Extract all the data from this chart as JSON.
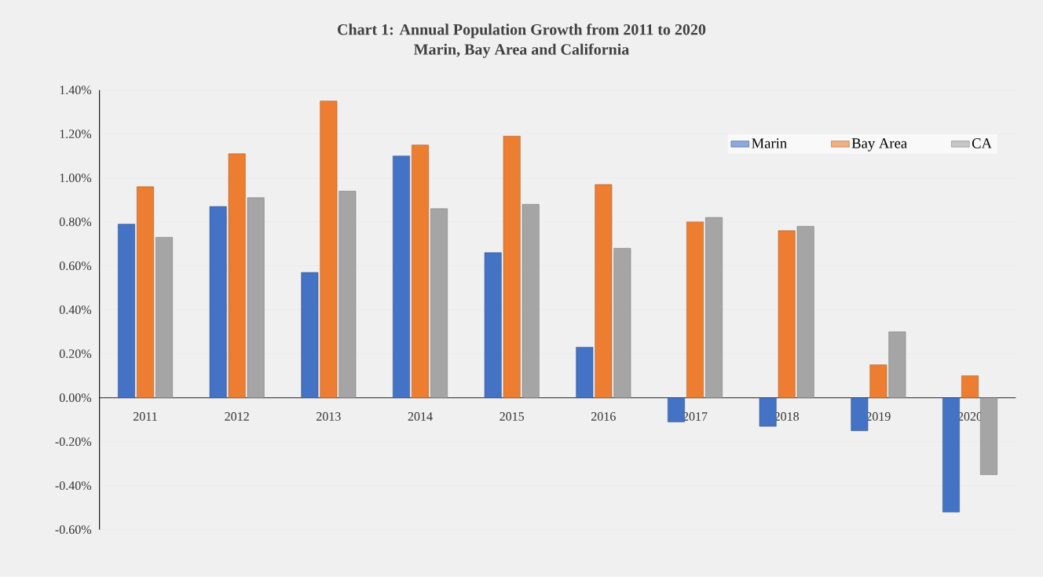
{
  "chart_data": {
    "type": "bar",
    "title": "Chart 1: Annual Population Growth from 2011 to 2020",
    "subtitle": "Marin, Bay Area and California",
    "categories": [
      "2011",
      "2012",
      "2013",
      "2014",
      "2015",
      "2016",
      "2017",
      "2018",
      "2019",
      "2020"
    ],
    "series": [
      {
        "name": "Marin",
        "color": "#4472c4",
        "values": [
          0.79,
          0.87,
          0.57,
          1.1,
          0.66,
          0.23,
          -0.11,
          -0.13,
          -0.15,
          -0.52
        ]
      },
      {
        "name": "Bay Area",
        "color": "#ed7d31",
        "values": [
          0.96,
          1.11,
          1.35,
          1.15,
          1.19,
          0.97,
          0.8,
          0.76,
          0.15,
          0.1
        ]
      },
      {
        "name": "CA",
        "color": "#a5a5a5",
        "values": [
          0.73,
          0.91,
          0.94,
          0.86,
          0.88,
          0.68,
          0.82,
          0.78,
          0.3,
          -0.35
        ]
      }
    ],
    "ylim": [
      -0.6,
      1.4
    ],
    "yticks": [
      {
        "value": -0.6,
        "label": "-0.60%"
      },
      {
        "value": -0.4,
        "label": "-0.40%"
      },
      {
        "value": -0.2,
        "label": "-0.20%"
      },
      {
        "value": 0,
        "label": "0.00%"
      },
      {
        "value": 0.2,
        "label": "0.20%"
      },
      {
        "value": 0.4,
        "label": "0.40%"
      },
      {
        "value": 0.6,
        "label": "0.60%"
      },
      {
        "value": 0.8,
        "label": "0.80%"
      },
      {
        "value": 1.0,
        "label": "1.00%"
      },
      {
        "value": 1.2,
        "label": "1.20%"
      },
      {
        "value": 1.4,
        "label": "1.40%"
      }
    ],
    "grid": "y",
    "legend": "top right"
  }
}
